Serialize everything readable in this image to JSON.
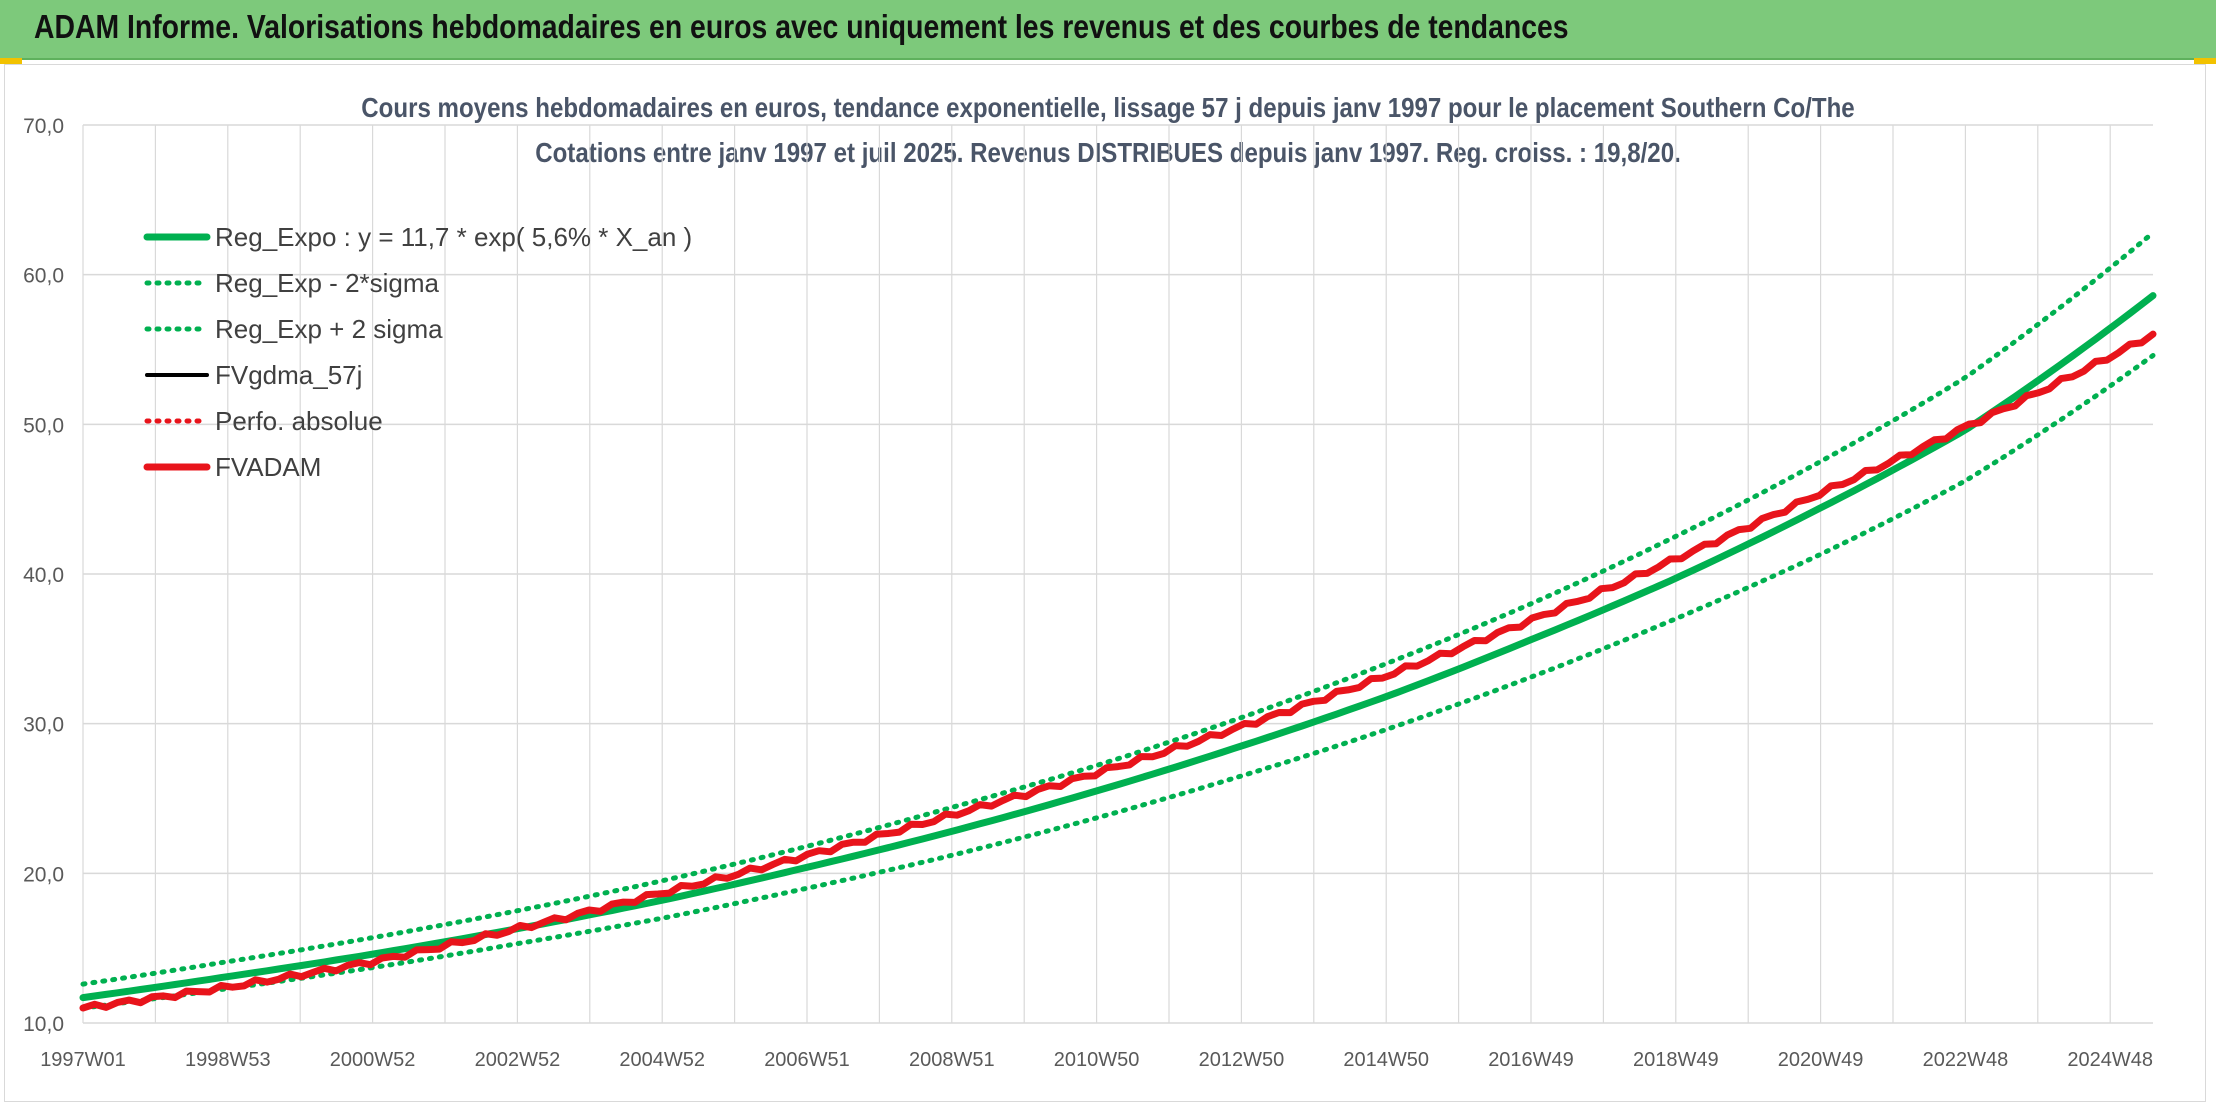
{
  "header": {
    "title": "ADAM Informe. Valorisations hebdomadaires en euros avec uniquement les revenus et des courbes de tendances"
  },
  "colors": {
    "header_bg": "#7dc97b",
    "reg_expo": "#00b050",
    "fvadam": "#e8141b",
    "fvgdma": "#000000",
    "perfo": "#e8141b",
    "grid": "#d9d9d9",
    "axis_text": "#595959"
  },
  "chart_data": {
    "type": "line",
    "title": "Cours moyens hebdomadaires en euros, tendance exponentielle, lissage 57 j depuis janv 1997 pour le placement Southern Co/The",
    "subtitle": "Cotations entre janv 1997 et juil 2025. Revenus DISTRIBUES depuis janv 1997. Reg. croiss. : 19,8/20.",
    "xlabel": "",
    "ylabel": "",
    "ylim": [
      10,
      70
    ],
    "yticks": [
      "10,0",
      "20,0",
      "30,0",
      "40,0",
      "50,0",
      "60,0",
      "70,0"
    ],
    "xticks": [
      "1997W01",
      "1998W53",
      "2000W52",
      "2002W52",
      "2004W52",
      "2006W51",
      "2008W51",
      "2010W50",
      "2012W50",
      "2014W50",
      "2016W49",
      "2018W49",
      "2020W49",
      "2022W48",
      "2024W48"
    ],
    "grid": true,
    "legend_position": "top-left",
    "x": [
      1997.0,
      1999.0,
      2001.0,
      2003.0,
      2005.0,
      2007.0,
      2009.0,
      2011.0,
      2013.0,
      2015.0,
      2017.0,
      2019.0,
      2021.0,
      2023.0,
      2025.6
    ],
    "series": [
      {
        "name": "Reg_Expo : y = 11,7 * exp( 5,6% *  X_an )",
        "style": "solid-thick",
        "color": "#00b050",
        "values": [
          11.7,
          13.1,
          14.6,
          16.3,
          18.2,
          20.4,
          22.8,
          25.5,
          28.5,
          31.8,
          35.6,
          39.7,
          44.4,
          49.6,
          58.6
        ]
      },
      {
        "name": "Reg_Exp - 2*sigma",
        "style": "dotted",
        "color": "#00b050",
        "values": [
          11.0,
          12.3,
          13.7,
          15.3,
          17.0,
          19.0,
          21.2,
          23.7,
          26.5,
          29.6,
          33.1,
          37.0,
          41.3,
          46.2,
          54.6
        ]
      },
      {
        "name": "Reg_Exp + 2 sigma",
        "style": "dotted",
        "color": "#00b050",
        "values": [
          12.6,
          14.1,
          15.7,
          17.5,
          19.5,
          21.8,
          24.4,
          27.2,
          30.4,
          34.0,
          38.0,
          42.5,
          47.5,
          53.1,
          62.8
        ]
      },
      {
        "name": "FVgdma_57j",
        "style": "solid",
        "color": "#000000",
        "values": [
          null,
          null,
          null,
          null,
          null,
          null,
          null,
          null,
          null,
          null,
          null,
          null,
          null,
          null,
          null
        ]
      },
      {
        "name": "Perfo. absolue",
        "style": "dotted",
        "color": "#e8141b",
        "values": [
          null,
          null,
          null,
          null,
          null,
          null,
          null,
          null,
          null,
          null,
          null,
          null,
          null,
          null,
          null
        ]
      },
      {
        "name": "FVADAM",
        "style": "solid-thick",
        "color": "#e8141b",
        "values": [
          11.0,
          12.4,
          14.1,
          16.3,
          18.7,
          21.2,
          23.9,
          26.7,
          29.8,
          33.2,
          36.9,
          41.0,
          45.4,
          49.8,
          56.0
        ]
      }
    ]
  }
}
